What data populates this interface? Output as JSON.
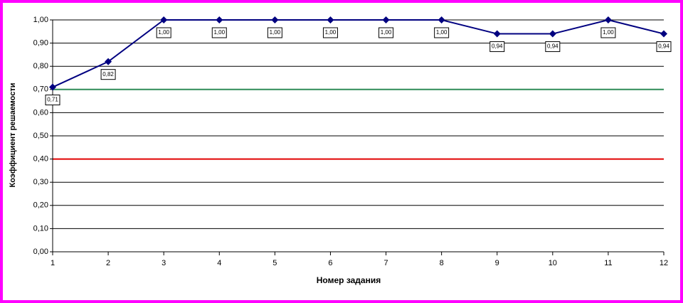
{
  "chart_data": {
    "type": "line",
    "y_label": "Коэффициент решаемости",
    "x_label": "Номер задания",
    "x": [
      1,
      2,
      3,
      4,
      5,
      6,
      7,
      8,
      9,
      10,
      11,
      12
    ],
    "xlim": [
      1,
      12
    ],
    "xticks": [
      1,
      2,
      3,
      4,
      5,
      6,
      7,
      8,
      9,
      10,
      11,
      12
    ],
    "ylim": [
      0,
      1
    ],
    "yticks": [
      {
        "value": 0,
        "label": "0,00"
      },
      {
        "value": 0.1,
        "label": "0,10"
      },
      {
        "value": 0.2,
        "label": "0,20"
      },
      {
        "value": 0.3,
        "label": "0,30"
      },
      {
        "value": 0.4,
        "label": "0,40"
      },
      {
        "value": 0.5,
        "label": "0,50"
      },
      {
        "value": 0.6,
        "label": "0,60"
      },
      {
        "value": 0.7,
        "label": "0,70"
      },
      {
        "value": 0.8,
        "label": "0,80"
      },
      {
        "value": 0.9,
        "label": "0,90"
      },
      {
        "value": 1,
        "label": "1,00"
      }
    ],
    "grid": true,
    "reference_lines": [
      {
        "value": 0.7,
        "color": "#2e8b57"
      },
      {
        "value": 0.4,
        "color": "#e00000"
      }
    ],
    "series": [
      {
        "color": "#000080",
        "values": [
          0.71,
          0.82,
          1,
          1,
          1,
          1,
          1,
          1,
          0.94,
          0.94,
          1,
          0.94
        ],
        "value_labels": [
          "0,71",
          "0,82",
          "1,00",
          "1,00",
          "1,00",
          "1,00",
          "1,00",
          "1,00",
          "0,94",
          "0,94",
          "1,00",
          "0,94"
        ]
      }
    ]
  }
}
